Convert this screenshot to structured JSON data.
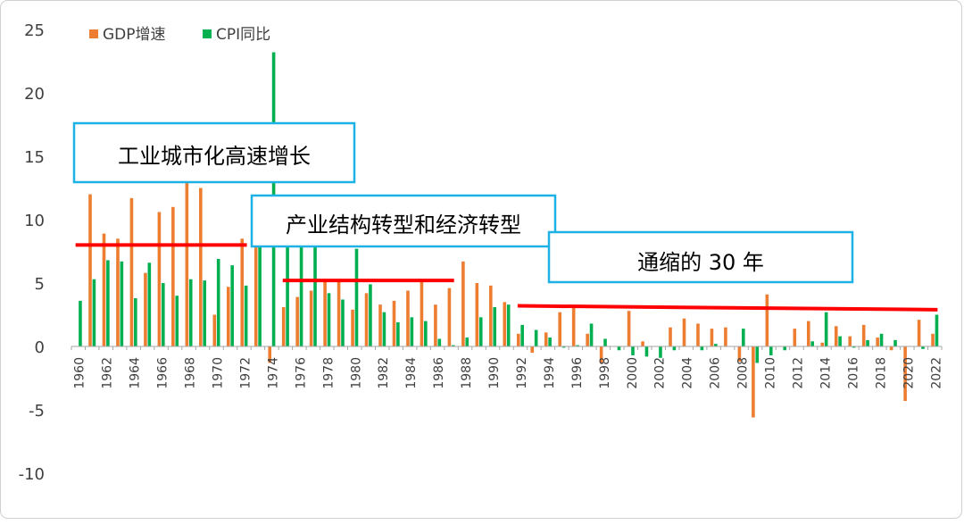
{
  "chart_data": {
    "type": "bar",
    "legend": {
      "placement": "top-left",
      "entries": [
        "GDP增速",
        "CPI同比"
      ]
    },
    "colors": {
      "gdp": "#ED7D31",
      "cpi": "#00B050",
      "period_line": "#FF0000",
      "box_border": "#1EB1E6"
    },
    "ylim": [
      -10,
      25
    ],
    "yticks": [
      -10,
      -5,
      0,
      5,
      10,
      15,
      20,
      25
    ],
    "xlim": [
      1960,
      2022
    ],
    "xtick_labels": [
      "1960",
      "1962",
      "1964",
      "1966",
      "1968",
      "1970",
      "1972",
      "1974",
      "1976",
      "1978",
      "1980",
      "1982",
      "1984",
      "1986",
      "1988",
      "1990",
      "1992",
      "1994",
      "1996",
      "1998",
      "2000",
      "2002",
      "2004",
      "2006",
      "2008",
      "2010",
      "2012",
      "2014",
      "2016",
      "2018",
      "2020",
      "2022"
    ],
    "grid": false,
    "series": [
      {
        "name": "GDP增速",
        "x": [
          1960,
          1961,
          1962,
          1963,
          1964,
          1965,
          1966,
          1967,
          1968,
          1969,
          1970,
          1971,
          1972,
          1973,
          1974,
          1975,
          1976,
          1977,
          1978,
          1979,
          1980,
          1981,
          1982,
          1983,
          1984,
          1985,
          1986,
          1987,
          1988,
          1989,
          1990,
          1991,
          1992,
          1993,
          1994,
          1995,
          1996,
          1997,
          1998,
          1999,
          2000,
          2001,
          2002,
          2003,
          2004,
          2005,
          2006,
          2007,
          2008,
          2009,
          2010,
          2011,
          2012,
          2013,
          2014,
          2015,
          2016,
          2017,
          2018,
          2019,
          2020,
          2021,
          2022
        ],
        "values": [
          null,
          12.0,
          8.9,
          8.5,
          11.7,
          5.8,
          10.6,
          11.0,
          13.0,
          12.5,
          2.5,
          4.7,
          8.5,
          8.0,
          -1.3,
          3.1,
          3.9,
          4.4,
          5.2,
          5.3,
          2.9,
          4.2,
          3.3,
          3.6,
          4.4,
          5.1,
          3.3,
          4.6,
          6.7,
          5.0,
          4.8,
          3.5,
          1.0,
          -0.5,
          1.1,
          2.7,
          3.1,
          1.0,
          -1.3,
          0,
          2.8,
          0.4,
          0,
          1.5,
          2.2,
          1.8,
          1.4,
          1.5,
          -1.2,
          -5.6,
          4.1,
          0,
          1.4,
          2.0,
          0.3,
          1.6,
          0.8,
          1.7,
          0.7,
          -0.3,
          -4.3,
          2.1,
          1.0
        ]
      },
      {
        "name": "CPI同比",
        "x": [
          1960,
          1961,
          1962,
          1963,
          1964,
          1965,
          1966,
          1967,
          1968,
          1969,
          1970,
          1971,
          1972,
          1973,
          1974,
          1975,
          1976,
          1977,
          1978,
          1979,
          1980,
          1981,
          1982,
          1983,
          1984,
          1985,
          1986,
          1987,
          1988,
          1989,
          1990,
          1991,
          1992,
          1993,
          1994,
          1995,
          1996,
          1997,
          1998,
          1999,
          2000,
          2001,
          2002,
          2003,
          2004,
          2005,
          2006,
          2007,
          2008,
          2009,
          2010,
          2011,
          2012,
          2013,
          2014,
          2015,
          2016,
          2017,
          2018,
          2019,
          2020,
          2021,
          2022
        ],
        "values": [
          3.6,
          5.3,
          6.8,
          6.7,
          3.8,
          6.6,
          5.0,
          4.0,
          5.3,
          5.2,
          6.9,
          6.4,
          4.8,
          11.6,
          23.2,
          11.7,
          9.4,
          8.1,
          4.2,
          3.7,
          7.7,
          4.9,
          2.7,
          1.9,
          2.3,
          2.0,
          0.6,
          0.1,
          0.7,
          2.3,
          3.1,
          3.3,
          1.7,
          1.3,
          0.7,
          -0.1,
          0.1,
          1.8,
          0.6,
          -0.3,
          -0.7,
          -0.8,
          -0.9,
          -0.3,
          0,
          -0.3,
          0.2,
          0,
          1.4,
          -1.3,
          -0.7,
          -0.3,
          0,
          0.4,
          2.7,
          0.8,
          -0.1,
          0.5,
          1.0,
          0.5,
          0,
          -0.2,
          2.5
        ]
      }
    ],
    "annotations": [
      {
        "text": "工业城市化高速增长",
        "line_start": 1960,
        "line_end": 1972,
        "line_y": 8.0
      },
      {
        "text": "产业结构转型和经济转型",
        "line_start": 1975,
        "line_end": 1987,
        "line_y": 5.2
      },
      {
        "text": "通缩的 30 年",
        "line_start": 1992,
        "line_end": 2022,
        "line_y_start": 3.2,
        "line_y_end": 2.9
      }
    ]
  }
}
